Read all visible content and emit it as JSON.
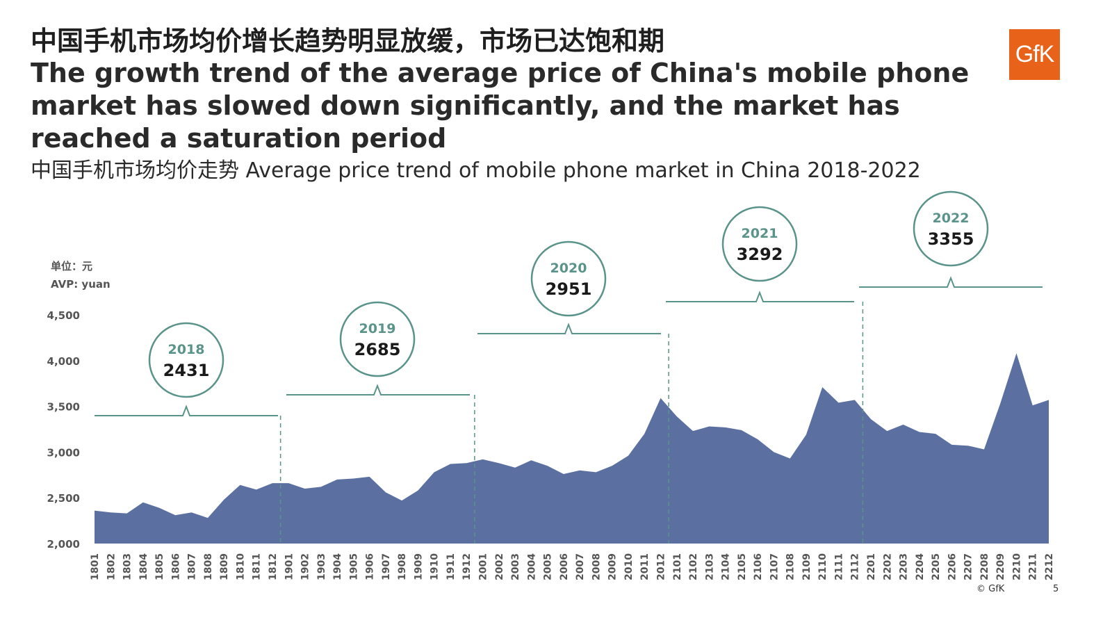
{
  "header": {
    "title_cn": "中国手机市场均价增长趋势明显放缓，市场已达饱和期",
    "title_en": "The growth trend of the average price of China's mobile phone market has slowed down significantly, and the market has reached a saturation period",
    "subtitle": "中国手机市场均价走势  Average price trend of mobile phone market in China 2018-2022",
    "logo_text": "GfK"
  },
  "footer": {
    "copyright": "© GfK",
    "page": "5"
  },
  "colors": {
    "area": "#5b70a0",
    "annotation": "#5a9389",
    "logo": "#e8621a"
  },
  "chart_data": {
    "type": "area",
    "unit_label_cn": "单位：元",
    "unit_label_en": "AVP: yuan",
    "ylim": [
      2000,
      4500
    ],
    "yticks": [
      2000,
      2500,
      3000,
      3500,
      4000,
      4500
    ],
    "ytick_labels": [
      "2,000",
      "2,500",
      "3,000",
      "3,500",
      "4,000",
      "4,500"
    ],
    "x": [
      "1801",
      "1802",
      "1803",
      "1804",
      "1805",
      "1806",
      "1807",
      "1808",
      "1809",
      "1810",
      "1811",
      "1812",
      "1901",
      "1902",
      "1903",
      "1904",
      "1905",
      "1906",
      "1907",
      "1908",
      "1909",
      "1910",
      "1911",
      "1912",
      "2001",
      "2002",
      "2003",
      "2004",
      "2005",
      "2006",
      "2007",
      "2008",
      "2009",
      "2010",
      "2011",
      "2012",
      "2101",
      "2102",
      "2103",
      "2104",
      "2105",
      "2106",
      "2107",
      "2108",
      "2109",
      "2110",
      "2111",
      "2112",
      "2201",
      "2202",
      "2203",
      "2204",
      "2205",
      "2206",
      "2207",
      "2208",
      "2209",
      "2210",
      "2211",
      "2212"
    ],
    "values": [
      2360,
      2340,
      2330,
      2450,
      2390,
      2310,
      2340,
      2280,
      2480,
      2640,
      2590,
      2660,
      2660,
      2600,
      2620,
      2700,
      2710,
      2730,
      2560,
      2470,
      2580,
      2780,
      2870,
      2880,
      2920,
      2880,
      2830,
      2910,
      2850,
      2760,
      2800,
      2780,
      2850,
      2960,
      3200,
      3590,
      3390,
      3230,
      3280,
      3270,
      3240,
      3140,
      3000,
      2930,
      3190,
      3710,
      3540,
      3570,
      3360,
      3230,
      3300,
      3220,
      3200,
      3080,
      3070,
      3030,
      3530,
      4080,
      3510,
      3570
    ],
    "annual_averages": [
      {
        "year": "2018",
        "value": "2431"
      },
      {
        "year": "2019",
        "value": "2685"
      },
      {
        "year": "2020",
        "value": "2951"
      },
      {
        "year": "2021",
        "value": "3292"
      },
      {
        "year": "2022",
        "value": "3355"
      }
    ],
    "grid": false,
    "legend": "none"
  }
}
